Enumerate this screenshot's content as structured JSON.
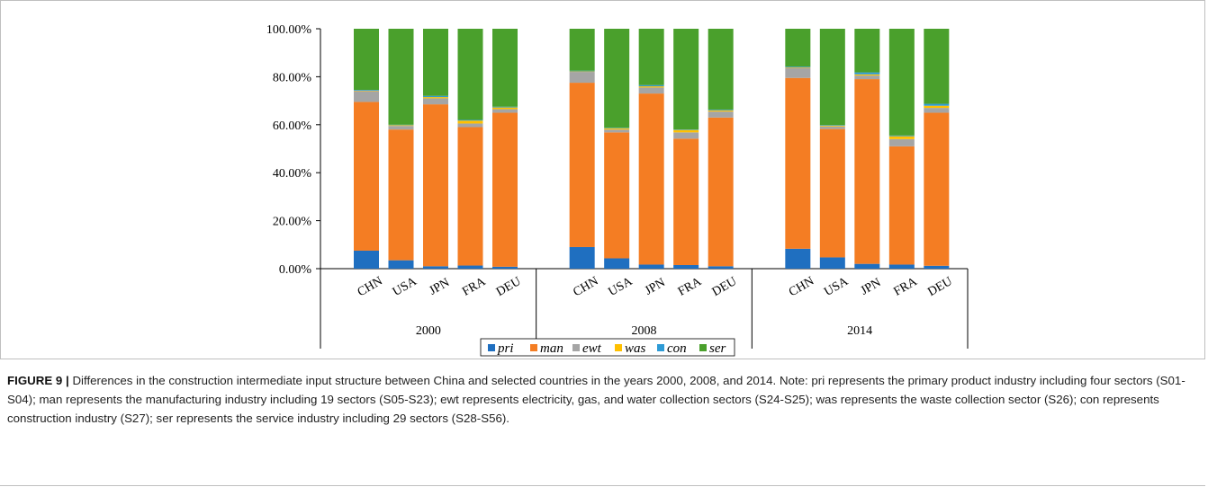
{
  "chart_data": {
    "type": "bar",
    "stacked": true,
    "title": "",
    "xlabel": "",
    "ylabel": "",
    "ylim": [
      0,
      100
    ],
    "yticks": [
      "0.00%",
      "20.00%",
      "40.00%",
      "60.00%",
      "80.00%",
      "100.00%"
    ],
    "grid": false,
    "legend_position": "bottom",
    "groups": [
      {
        "label": "2000",
        "categories": [
          "CHN",
          "USA",
          "JPN",
          "FRA",
          "DEU"
        ]
      },
      {
        "label": "2008",
        "categories": [
          "CHN",
          "USA",
          "JPN",
          "FRA",
          "DEU"
        ]
      },
      {
        "label": "2014",
        "categories": [
          "CHN",
          "USA",
          "JPN",
          "FRA",
          "DEU"
        ]
      }
    ],
    "series": [
      {
        "name": "pri",
        "color": "#1f6fc0",
        "values": [
          7.5,
          3.5,
          1.0,
          1.3,
          0.8,
          9.0,
          4.3,
          1.7,
          1.5,
          1.0,
          8.3,
          4.7,
          2.0,
          1.7,
          1.2
        ]
      },
      {
        "name": "man",
        "color": "#f47d23",
        "values": [
          62.0,
          54.5,
          67.5,
          57.7,
          64.2,
          68.5,
          52.5,
          71.3,
          52.7,
          62.0,
          71.2,
          53.5,
          77.0,
          49.3,
          63.8
        ]
      },
      {
        "name": "ewt",
        "color": "#a5a5a5",
        "values": [
          4.5,
          1.5,
          2.5,
          1.5,
          1.5,
          4.5,
          1.2,
          2.5,
          2.6,
          2.5,
          4.2,
          1.1,
          1.5,
          3.0,
          2.0
        ]
      },
      {
        "name": "was",
        "color": "#ffc000",
        "values": [
          0.2,
          0.3,
          0.5,
          1.2,
          0.7,
          0.2,
          0.5,
          0.5,
          1.0,
          0.5,
          0.2,
          0.3,
          0.5,
          1.2,
          0.9
        ]
      },
      {
        "name": "con",
        "color": "#2e9bd6",
        "values": [
          0.3,
          0.2,
          0.5,
          0.3,
          0.3,
          0.3,
          0.2,
          0.5,
          0.2,
          0.3,
          0.3,
          0.2,
          0.8,
          0.3,
          0.8
        ]
      },
      {
        "name": "ser",
        "color": "#4aa02c",
        "values": [
          25.5,
          40.0,
          28.0,
          38.0,
          32.5,
          17.5,
          41.3,
          23.5,
          42.0,
          33.7,
          15.8,
          40.2,
          18.2,
          44.5,
          31.3
        ]
      }
    ]
  },
  "caption": {
    "label": "FIGURE 9 |",
    "text": " Differences in the construction intermediate input structure between China and selected countries in the years 2000, 2008, and 2014. Note: pri represents the primary product industry including four sectors (S01-S04); man represents the manufacturing industry including 19 sectors (S05-S23); ewt represents electricity, gas, and water collection sectors (S24-S25); was represents the waste collection sector (S26); con represents construction industry (S27); ser represents the service industry including 29 sectors (S28-S56)."
  }
}
